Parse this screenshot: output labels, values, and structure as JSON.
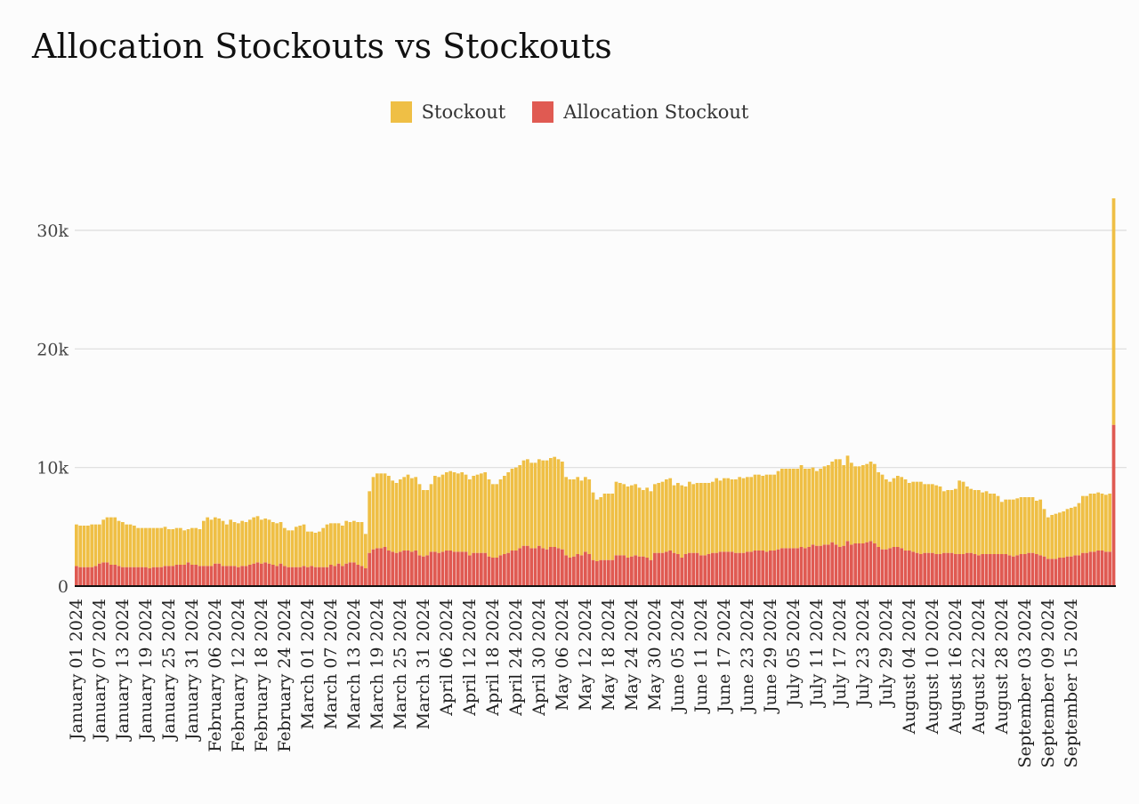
{
  "chart_data": {
    "type": "bar",
    "stacked": true,
    "title": "Allocation Stockouts vs Stockouts",
    "xlabel": "",
    "ylabel": "",
    "ylim": [
      0,
      33000
    ],
    "yticks": [
      0,
      10000,
      20000,
      30000
    ],
    "ytick_labels": [
      "0",
      "10k",
      "20k",
      "30k"
    ],
    "grid": "horizontal",
    "legend_position": "top-center",
    "start_date": "2024-01-01",
    "x_tick_labels": [
      "January 01 2024",
      "January 07 2024",
      "January 13 2024",
      "January 19 2024",
      "January 25 2024",
      "January 31 2024",
      "February 06 2024",
      "February 12 2024",
      "February 18 2024",
      "February 24 2024",
      "March 01 2024",
      "March 07 2024",
      "March 13 2024",
      "March 19 2024",
      "March 25 2024",
      "March 31 2024",
      "April 06 2024",
      "April 12 2024",
      "April 18 2024",
      "April 24 2024",
      "April 30 2024",
      "May 06 2024",
      "May 12 2024",
      "May 18 2024",
      "May 24 2024",
      "May 30 2024",
      "June 05 2024",
      "June 11 2024",
      "June 17 2024",
      "June 23 2024",
      "June 29 2024",
      "July 05 2024",
      "July 11 2024",
      "July 17 2024",
      "July 23 2024",
      "July 29 2024",
      "August 04 2024",
      "August 10 2024",
      "August 16 2024",
      "August 22 2024",
      "August 28 2024",
      "September 03 2024",
      "September 09 2024",
      "September 15 2024"
    ],
    "series": [
      {
        "name": "Allocation Stockout",
        "color": "#e05a52",
        "values": [
          1700,
          1600,
          1600,
          1600,
          1600,
          1700,
          1900,
          2000,
          2000,
          1800,
          1800,
          1700,
          1600,
          1600,
          1600,
          1600,
          1600,
          1600,
          1600,
          1500,
          1600,
          1600,
          1600,
          1700,
          1700,
          1700,
          1800,
          1800,
          1800,
          2000,
          1800,
          1800,
          1700,
          1700,
          1700,
          1700,
          1900,
          1900,
          1700,
          1700,
          1700,
          1700,
          1600,
          1700,
          1700,
          1800,
          1900,
          2000,
          1900,
          2000,
          1900,
          1800,
          1700,
          1900,
          1700,
          1600,
          1600,
          1600,
          1600,
          1700,
          1600,
          1700,
          1600,
          1600,
          1600,
          1600,
          1800,
          1700,
          1900,
          1700,
          1900,
          2000,
          2000,
          1800,
          1700,
          1500,
          2800,
          3100,
          3200,
          3200,
          3300,
          3000,
          2900,
          2800,
          2900,
          3000,
          3000,
          2900,
          3000,
          2600,
          2500,
          2600,
          2900,
          2900,
          2800,
          2900,
          3000,
          3000,
          2900,
          2900,
          2900,
          2900,
          2600,
          2800,
          2800,
          2800,
          2800,
          2500,
          2400,
          2400,
          2600,
          2700,
          2800,
          3000,
          3000,
          3200,
          3400,
          3400,
          3200,
          3200,
          3400,
          3200,
          3100,
          3300,
          3300,
          3200,
          3100,
          2600,
          2400,
          2500,
          2700,
          2600,
          2900,
          2700,
          2200,
          2100,
          2200,
          2200,
          2200,
          2200,
          2600,
          2600,
          2600,
          2400,
          2500,
          2600,
          2500,
          2500,
          2400,
          2200,
          2800,
          2800,
          2800,
          2900,
          3000,
          2800,
          2700,
          2400,
          2700,
          2800,
          2800,
          2800,
          2600,
          2600,
          2700,
          2800,
          2800,
          2900,
          2900,
          2900,
          2900,
          2800,
          2800,
          2800,
          2900,
          2900,
          3000,
          3000,
          3000,
          2900,
          3000,
          3000,
          3100,
          3200,
          3200,
          3200,
          3200,
          3200,
          3300,
          3200,
          3300,
          3500,
          3400,
          3400,
          3500,
          3500,
          3700,
          3500,
          3300,
          3400,
          3800,
          3500,
          3600,
          3600,
          3600,
          3700,
          3800,
          3600,
          3300,
          3100,
          3100,
          3200,
          3300,
          3300,
          3200,
          3000,
          3000,
          2900,
          2800,
          2700,
          2800,
          2800,
          2800,
          2700,
          2700,
          2800,
          2800,
          2800,
          2700,
          2700,
          2700,
          2800,
          2800,
          2700,
          2600,
          2700,
          2700,
          2700,
          2700,
          2700,
          2700,
          2700,
          2600,
          2500,
          2600,
          2700,
          2700,
          2800,
          2800,
          2700,
          2600,
          2500,
          2300,
          2300,
          2300,
          2400,
          2400,
          2500,
          2500,
          2600,
          2600,
          2800,
          2800,
          2900,
          2900,
          3000,
          3000,
          2900,
          2900,
          13600
        ]
      },
      {
        "name": "Stockout",
        "color": "#efbf45",
        "values": [
          3500,
          3500,
          3500,
          3500,
          3600,
          3500,
          3300,
          3600,
          3800,
          4000,
          4000,
          3800,
          3800,
          3600,
          3600,
          3500,
          3300,
          3300,
          3300,
          3400,
          3300,
          3300,
          3300,
          3300,
          3100,
          3100,
          3100,
          3100,
          2900,
          2800,
          3100,
          3100,
          3100,
          3800,
          4100,
          3900,
          3900,
          3800,
          3800,
          3500,
          3900,
          3700,
          3700,
          3800,
          3700,
          3800,
          3900,
          3900,
          3700,
          3700,
          3700,
          3600,
          3600,
          3500,
          3200,
          3100,
          3100,
          3400,
          3500,
          3500,
          3000,
          2900,
          2900,
          3000,
          3300,
          3600,
          3500,
          3600,
          3400,
          3400,
          3600,
          3400,
          3500,
          3600,
          3700,
          2900,
          5200,
          6100,
          6300,
          6300,
          6200,
          6300,
          6000,
          5900,
          6100,
          6200,
          6400,
          6200,
          6200,
          6000,
          5600,
          5500,
          5700,
          6400,
          6400,
          6500,
          6600,
          6700,
          6700,
          6600,
          6700,
          6500,
          6400,
          6500,
          6600,
          6700,
          6800,
          6500,
          6200,
          6200,
          6400,
          6600,
          6800,
          6900,
          7000,
          7000,
          7200,
          7300,
          7200,
          7200,
          7300,
          7400,
          7500,
          7500,
          7600,
          7500,
          7400,
          6600,
          6600,
          6500,
          6500,
          6300,
          6300,
          6300,
          5700,
          5200,
          5300,
          5600,
          5600,
          5600,
          6200,
          6100,
          6000,
          6000,
          6000,
          6000,
          5800,
          5600,
          5900,
          5800,
          5800,
          5900,
          6000,
          6100,
          6100,
          5700,
          6000,
          6100,
          5700,
          6000,
          5800,
          5900,
          6100,
          6100,
          6000,
          6000,
          6300,
          6000,
          6200,
          6200,
          6100,
          6200,
          6400,
          6300,
          6300,
          6300,
          6400,
          6400,
          6300,
          6500,
          6400,
          6400,
          6600,
          6700,
          6700,
          6700,
          6700,
          6700,
          6900,
          6700,
          6600,
          6500,
          6300,
          6500,
          6600,
          6700,
          6800,
          7200,
          7400,
          6800,
          7200,
          6900,
          6500,
          6500,
          6600,
          6600,
          6700,
          6700,
          6300,
          6300,
          5900,
          5600,
          5800,
          6000,
          6000,
          6000,
          5700,
          5900,
          6000,
          6100,
          5800,
          5800,
          5800,
          5800,
          5700,
          5200,
          5300,
          5300,
          5500,
          6200,
          6100,
          5600,
          5400,
          5400,
          5500,
          5200,
          5300,
          5100,
          5100,
          4900,
          4400,
          4600,
          4700,
          4800,
          4800,
          4800,
          4800,
          4700,
          4700,
          4500,
          4700,
          4000,
          3500,
          3700,
          3800,
          3800,
          3900,
          4000,
          4100,
          4100,
          4400,
          4800,
          4800,
          4900,
          4900,
          4900,
          4800,
          4800,
          4900,
          19100
        ]
      }
    ]
  }
}
